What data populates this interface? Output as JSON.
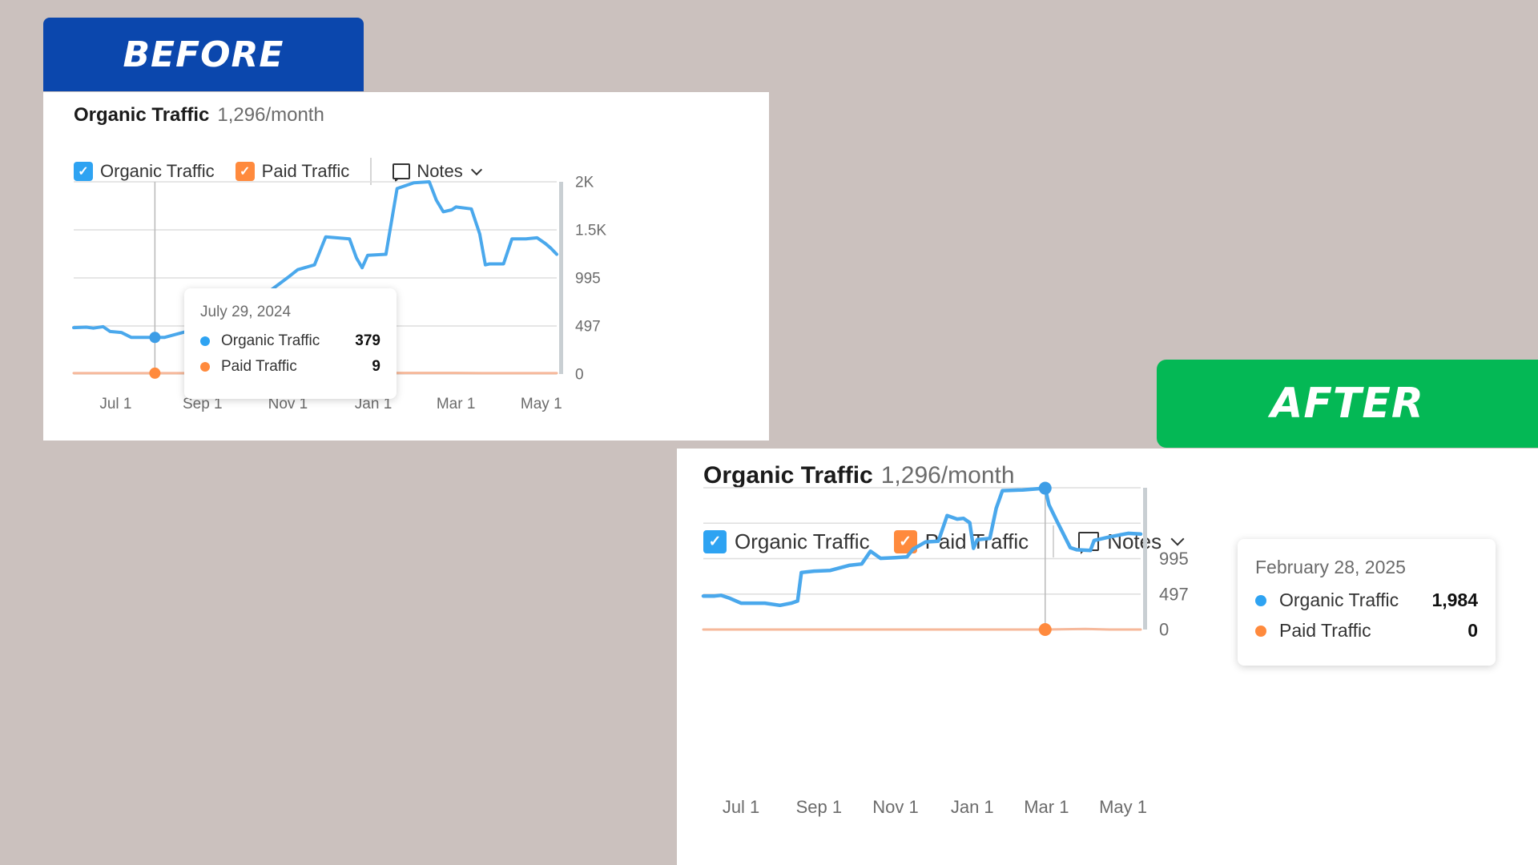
{
  "badges": {
    "before": "BEFORE",
    "after": "AFTER"
  },
  "colors": {
    "organic": "#4aa8ec",
    "paid": "#ff8a3d",
    "grid": "#dedede",
    "axis_text": "#6b6b6b"
  },
  "panels": {
    "before": {
      "title": "Organic Traffic",
      "subtitle": "1,296/month",
      "legend": {
        "organic": "Organic Traffic",
        "paid": "Paid Traffic",
        "notes": "Notes"
      },
      "tooltip": {
        "date": "July 29, 2024",
        "organic_label": "Organic Traffic",
        "organic_value": "379",
        "paid_label": "Paid Traffic",
        "paid_value": "9"
      }
    },
    "after": {
      "title": "Organic Traffic",
      "subtitle": "1,296/month",
      "legend": {
        "organic": "Organic Traffic",
        "paid": "Paid Traffic",
        "notes": "Notes"
      },
      "tooltip": {
        "date": "February 28, 2025",
        "organic_label": "Organic Traffic",
        "organic_value": "1,984",
        "paid_label": "Paid Traffic",
        "paid_value": "0"
      }
    }
  },
  "chart_data": [
    {
      "type": "line",
      "panel": "before",
      "x_domain": [
        "2024-06-01",
        "2025-05-12"
      ],
      "ylim": [
        0,
        1990
      ],
      "y_ticks": [
        {
          "value": 0,
          "label": "0"
        },
        {
          "value": 497,
          "label": "497"
        },
        {
          "value": 995,
          "label": "995"
        },
        {
          "value": 1493,
          "label": "1.5K"
        },
        {
          "value": 1990,
          "label": "2K"
        }
      ],
      "x_ticks": [
        {
          "date": "2024-07-01",
          "label": "Jul 1"
        },
        {
          "date": "2024-09-01",
          "label": "Sep 1"
        },
        {
          "date": "2024-11-01",
          "label": "Nov 1"
        },
        {
          "date": "2025-01-01",
          "label": "Jan 1"
        },
        {
          "date": "2025-03-01",
          "label": "Mar 1"
        },
        {
          "date": "2025-05-01",
          "label": "May 1"
        }
      ],
      "grid": true,
      "hover_date": "2024-07-29",
      "series": [
        {
          "name": "Organic Traffic",
          "key": "organic",
          "points": [
            [
              "2024-06-01",
              480
            ],
            [
              "2024-06-10",
              485
            ],
            [
              "2024-06-15",
              475
            ],
            [
              "2024-06-22",
              490
            ],
            [
              "2024-06-27",
              440
            ],
            [
              "2024-07-05",
              430
            ],
            [
              "2024-07-12",
              380
            ],
            [
              "2024-07-20",
              380
            ],
            [
              "2024-07-29",
              379
            ],
            [
              "2024-08-05",
              380
            ],
            [
              "2024-09-10",
              520
            ],
            [
              "2024-10-10",
              780
            ],
            [
              "2024-10-20",
              870
            ],
            [
              "2024-11-01",
              1000
            ],
            [
              "2024-11-08",
              1080
            ],
            [
              "2024-11-20",
              1130
            ],
            [
              "2024-11-28",
              1420
            ],
            [
              "2024-12-15",
              1400
            ],
            [
              "2024-12-20",
              1200
            ],
            [
              "2024-12-24",
              1100
            ],
            [
              "2024-12-28",
              1230
            ],
            [
              "2025-01-10",
              1240
            ],
            [
              "2025-01-18",
              1920
            ],
            [
              "2025-01-30",
              1980
            ],
            [
              "2025-02-10",
              1990
            ],
            [
              "2025-02-15",
              1800
            ],
            [
              "2025-02-20",
              1680
            ],
            [
              "2025-02-26",
              1700
            ],
            [
              "2025-03-01",
              1730
            ],
            [
              "2025-03-12",
              1710
            ],
            [
              "2025-03-18",
              1450
            ],
            [
              "2025-03-22",
              1130
            ],
            [
              "2025-03-25",
              1140
            ],
            [
              "2025-04-04",
              1140
            ],
            [
              "2025-04-10",
              1400
            ],
            [
              "2025-04-20",
              1400
            ],
            [
              "2025-04-28",
              1410
            ],
            [
              "2025-05-04",
              1350
            ],
            [
              "2025-05-08",
              1300
            ],
            [
              "2025-05-12",
              1240
            ]
          ]
        },
        {
          "name": "Paid Traffic",
          "key": "paid",
          "points": [
            [
              "2024-06-01",
              9
            ],
            [
              "2024-07-29",
              9
            ],
            [
              "2025-03-01",
              12
            ],
            [
              "2025-03-20",
              9
            ],
            [
              "2025-05-12",
              9
            ]
          ]
        }
      ]
    },
    {
      "type": "line",
      "panel": "after",
      "x_domain": [
        "2024-06-01",
        "2025-05-15"
      ],
      "ylim": [
        0,
        1990
      ],
      "y_ticks": [
        {
          "value": 0,
          "label": "0"
        },
        {
          "value": 497,
          "label": "497"
        },
        {
          "value": 995,
          "label": "995"
        }
      ],
      "x_ticks": [
        {
          "date": "2024-07-01",
          "label": "Jul 1"
        },
        {
          "date": "2024-09-01",
          "label": "Sep 1"
        },
        {
          "date": "2024-11-01",
          "label": "Nov 1"
        },
        {
          "date": "2025-01-01",
          "label": "Jan 1"
        },
        {
          "date": "2025-03-01",
          "label": "Mar 1"
        },
        {
          "date": "2025-05-01",
          "label": "May 1"
        }
      ],
      "grid": true,
      "hover_date": "2025-02-28",
      "series": [
        {
          "name": "Organic Traffic",
          "key": "organic",
          "points": [
            [
              "2024-06-01",
              470
            ],
            [
              "2024-06-10",
              470
            ],
            [
              "2024-06-15",
              480
            ],
            [
              "2024-06-22",
              440
            ],
            [
              "2024-07-01",
              370
            ],
            [
              "2024-07-20",
              370
            ],
            [
              "2024-08-01",
              340
            ],
            [
              "2024-08-10",
              370
            ],
            [
              "2024-08-15",
              400
            ],
            [
              "2024-08-18",
              800
            ],
            [
              "2024-08-28",
              820
            ],
            [
              "2024-09-10",
              830
            ],
            [
              "2024-09-25",
              900
            ],
            [
              "2024-10-05",
              920
            ],
            [
              "2024-10-12",
              1100
            ],
            [
              "2024-10-20",
              1000
            ],
            [
              "2024-11-01",
              1010
            ],
            [
              "2024-11-10",
              1020
            ],
            [
              "2024-11-15",
              1130
            ],
            [
              "2024-11-25",
              1230
            ],
            [
              "2024-12-05",
              1240
            ],
            [
              "2024-12-12",
              1600
            ],
            [
              "2024-12-20",
              1550
            ],
            [
              "2024-12-25",
              1560
            ],
            [
              "2024-12-30",
              1500
            ],
            [
              "2025-01-02",
              1140
            ],
            [
              "2025-01-05",
              1260
            ],
            [
              "2025-01-15",
              1280
            ],
            [
              "2025-01-20",
              1700
            ],
            [
              "2025-01-25",
              1950
            ],
            [
              "2025-02-10",
              1960
            ],
            [
              "2025-02-28",
              1984
            ],
            [
              "2025-03-03",
              1750
            ],
            [
              "2025-03-10",
              1500
            ],
            [
              "2025-03-20",
              1150
            ],
            [
              "2025-03-25",
              1120
            ],
            [
              "2025-04-05",
              1110
            ],
            [
              "2025-04-08",
              1250
            ],
            [
              "2025-04-20",
              1300
            ],
            [
              "2025-05-05",
              1350
            ],
            [
              "2025-05-15",
              1340
            ]
          ]
        },
        {
          "name": "Paid Traffic",
          "key": "paid",
          "points": [
            [
              "2024-06-01",
              0
            ],
            [
              "2025-02-28",
              0
            ],
            [
              "2025-04-01",
              8
            ],
            [
              "2025-04-20",
              0
            ],
            [
              "2025-05-15",
              0
            ]
          ]
        }
      ]
    }
  ]
}
